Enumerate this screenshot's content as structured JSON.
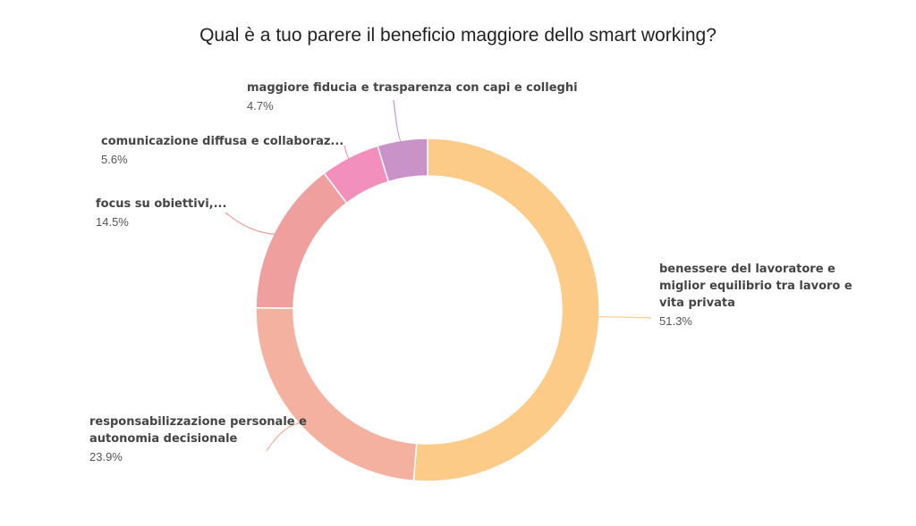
{
  "chart_data": {
    "type": "donut",
    "title": "Qual è a tuo parere il beneficio maggiore dello smart working?",
    "categories": [
      "benessere del lavoratore e miglior equilibrio tra lavoro e vita privata",
      "responsabilizzazione personale e autonomia decisionale",
      "focus su obiettivi,...",
      "comunicazione diffusa e collaboraz...",
      "maggiore fiducia e trasparenza con capi e colleghi"
    ],
    "values": [
      51.3,
      23.9,
      14.5,
      5.6,
      4.7
    ],
    "value_labels": [
      "51.3%",
      "23.9%",
      "14.5%",
      "5.6%",
      "4.7%"
    ],
    "colors": [
      "#fccb87",
      "#f5b19f",
      "#f09f9f",
      "#f38fbd",
      "#c993c9"
    ]
  }
}
